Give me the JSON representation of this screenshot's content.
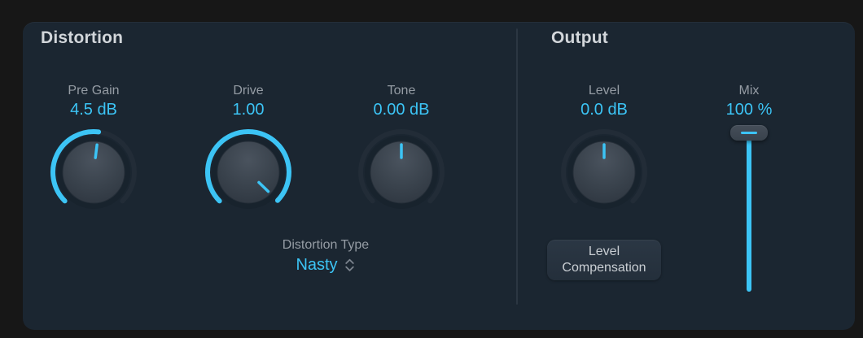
{
  "colors": {
    "accent": "#3cc4f5",
    "panel": "#1b2631",
    "background": "#171717",
    "knob_track": "#222c37",
    "label": "#959ca4",
    "title": "#d2d6da"
  },
  "distortion": {
    "title": "Distortion",
    "knobs": [
      {
        "id": "pre-gain",
        "label": "Pre Gain",
        "value": "4.5 dB",
        "pointer_deg": 7,
        "arc_start_deg": -135,
        "arc_end_deg": 7
      },
      {
        "id": "drive",
        "label": "Drive",
        "value": "1.00",
        "pointer_deg": 134,
        "arc_start_deg": -135,
        "arc_end_deg": 134
      },
      {
        "id": "tone",
        "label": "Tone",
        "value": "0.00 dB",
        "pointer_deg": 0,
        "arc_start_deg": 0,
        "arc_end_deg": 0
      }
    ],
    "type_label": "Distortion Type",
    "type_value": "Nasty"
  },
  "output": {
    "title": "Output",
    "knobs": [
      {
        "id": "level",
        "label": "Level",
        "value": "0.0 dB",
        "pointer_deg": 0,
        "arc_start_deg": 0,
        "arc_end_deg": 0
      }
    ],
    "level_compensation": {
      "line1": "Level",
      "line2": "Compensation"
    },
    "mix": {
      "label": "Mix",
      "value": "100 %",
      "percent": 100
    }
  }
}
